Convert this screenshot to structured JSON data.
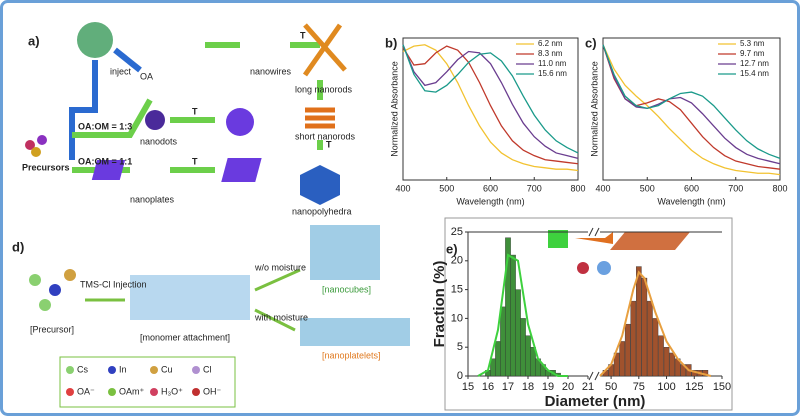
{
  "chart_data": [
    {
      "type": "line",
      "label": "b)",
      "xlabel": "Wavelength (nm)",
      "ylabel": "Normalized Absorbance",
      "xlim": [
        400,
        800
      ],
      "xticks": [
        400,
        500,
        600,
        700,
        800
      ],
      "ylim": [
        0,
        1.05
      ],
      "legend": "upper right",
      "x": [
        400,
        425,
        450,
        475,
        500,
        525,
        550,
        575,
        600,
        625,
        650,
        675,
        700,
        725,
        750,
        775,
        800
      ],
      "series": [
        {
          "name": "6.2 nm",
          "color": "#f2c230",
          "values": [
            0.95,
            0.99,
            1.0,
            0.96,
            0.86,
            0.72,
            0.55,
            0.4,
            0.28,
            0.2,
            0.15,
            0.12,
            0.1,
            0.09,
            0.08,
            0.08,
            0.07
          ]
        },
        {
          "name": "8.3 nm",
          "color": "#c0392b",
          "values": [
            0.98,
            0.85,
            0.86,
            0.94,
            0.99,
            0.96,
            0.87,
            0.72,
            0.55,
            0.4,
            0.29,
            0.22,
            0.18,
            0.15,
            0.14,
            0.13,
            0.12
          ]
        },
        {
          "name": "11.0 nm",
          "color": "#6a3d8f",
          "values": [
            1.0,
            0.8,
            0.7,
            0.72,
            0.8,
            0.89,
            0.95,
            0.94,
            0.86,
            0.72,
            0.56,
            0.42,
            0.32,
            0.25,
            0.2,
            0.18,
            0.16
          ]
        },
        {
          "name": "15.6 nm",
          "color": "#1a9a8a",
          "values": [
            1.0,
            0.78,
            0.66,
            0.65,
            0.7,
            0.78,
            0.87,
            0.93,
            0.94,
            0.88,
            0.77,
            0.62,
            0.48,
            0.37,
            0.29,
            0.24,
            0.2
          ]
        }
      ]
    },
    {
      "type": "line",
      "label": "c)",
      "xlabel": "Wavelength (nm)",
      "ylabel": "Normalized Absorbance",
      "xlim": [
        400,
        800
      ],
      "xticks": [
        400,
        500,
        600,
        700,
        800
      ],
      "ylim": [
        0,
        1.05
      ],
      "legend": "upper right",
      "x": [
        400,
        425,
        450,
        475,
        500,
        525,
        550,
        575,
        600,
        625,
        650,
        675,
        700,
        725,
        750,
        775,
        800
      ],
      "series": [
        {
          "name": "5.3 nm",
          "color": "#f2c230",
          "values": [
            1.0,
            0.82,
            0.7,
            0.62,
            0.55,
            0.47,
            0.38,
            0.3,
            0.22,
            0.16,
            0.12,
            0.09,
            0.07,
            0.06,
            0.05,
            0.05,
            0.04
          ]
        },
        {
          "name": "9.7 nm",
          "color": "#c0392b",
          "values": [
            1.0,
            0.75,
            0.6,
            0.55,
            0.57,
            0.6,
            0.58,
            0.52,
            0.42,
            0.32,
            0.24,
            0.18,
            0.14,
            0.12,
            0.1,
            0.09,
            0.08
          ]
        },
        {
          "name": "12.7 nm",
          "color": "#6a3d8f",
          "values": [
            1.0,
            0.76,
            0.6,
            0.54,
            0.53,
            0.56,
            0.6,
            0.61,
            0.57,
            0.49,
            0.4,
            0.31,
            0.24,
            0.19,
            0.16,
            0.14,
            0.12
          ]
        },
        {
          "name": "15.4 nm",
          "color": "#1a9a8a",
          "values": [
            1.0,
            0.78,
            0.62,
            0.55,
            0.53,
            0.55,
            0.6,
            0.64,
            0.65,
            0.62,
            0.55,
            0.46,
            0.37,
            0.29,
            0.23,
            0.19,
            0.16
          ]
        }
      ]
    },
    {
      "type": "bar",
      "label": "e)",
      "xlabel": "Diameter (nm)",
      "ylabel": "Fraction (%)",
      "ylim": [
        0,
        25
      ],
      "yticks": [
        0,
        5,
        10,
        15,
        20,
        25
      ],
      "panels": [
        {
          "xlim": [
            15,
            21
          ],
          "xticks": [
            15,
            16,
            17,
            18,
            19,
            20,
            21
          ],
          "series": [
            {
              "type": "bar",
              "color": "#3f8f3a",
              "x": [
                16,
                16.25,
                16.5,
                16.75,
                17,
                17.25,
                17.5,
                17.75,
                18,
                18.25,
                18.5,
                18.75,
                19,
                19.25,
                19.5
              ],
              "values": [
                1,
                3,
                6,
                12,
                24,
                21,
                15,
                10,
                7,
                5,
                3,
                2,
                1,
                1,
                0.5
              ]
            },
            {
              "type": "line",
              "color": "#3ed13e",
              "x": [
                15.5,
                16,
                16.5,
                17,
                17.5,
                18,
                18.5,
                19,
                19.5,
                20
              ],
              "values": [
                0,
                1,
                8,
                21,
                20,
                9,
                3,
                1,
                0,
                0
              ]
            }
          ]
        },
        {
          "xlim": [
            40,
            150
          ],
          "xticks": [
            50,
            75,
            100,
            125,
            150
          ],
          "series": [
            {
              "type": "bar",
              "color": "#a0522d",
              "x": [
                45,
                50,
                55,
                60,
                65,
                70,
                75,
                80,
                85,
                90,
                95,
                100,
                105,
                110,
                115,
                120,
                125,
                130,
                135
              ],
              "values": [
                1,
                2,
                4,
                6,
                9,
                13,
                19,
                17,
                13,
                10,
                7,
                5,
                4,
                3,
                2,
                2,
                1,
                1,
                1
              ]
            },
            {
              "type": "line",
              "color": "#e8a040",
              "x": [
                40,
                50,
                60,
                70,
                75,
                80,
                90,
                100,
                110,
                120,
                130,
                140
              ],
              "values": [
                0,
                2,
                7,
                15,
                18,
                17,
                11,
                6,
                3,
                1,
                0.5,
                0
              ]
            }
          ]
        }
      ]
    }
  ],
  "panel_a": {
    "label": "a)",
    "inject": "inject",
    "oa": "OA",
    "ratio1": "OA:OM = 1:3",
    "ratio2": "OA:OM = 1:1",
    "precursors": "Precursors",
    "nanodots": "nanodots",
    "nanoplates": "nanoplates",
    "nanowires": "nanowires",
    "long_nanorods": "long nanorods",
    "short_nanorods": "short nanorods",
    "nanopolyhedra": "nanopolyhedra",
    "t": "T"
  },
  "panel_d": {
    "label": "d)",
    "injection": "TMS-Cl Injection",
    "precursor": "[Precursor]",
    "monomer": "[monomer attachment]",
    "without": "w/o moisture",
    "with": "with moisture",
    "nanocubes": "[nanocubes]",
    "nanoplatelets": "[nanoplatelets]",
    "legend": [
      "Cs",
      "In",
      "Cu",
      "Cl",
      "OA⁻",
      "OAm⁺",
      "H₃O⁺",
      "OH⁻"
    ]
  }
}
